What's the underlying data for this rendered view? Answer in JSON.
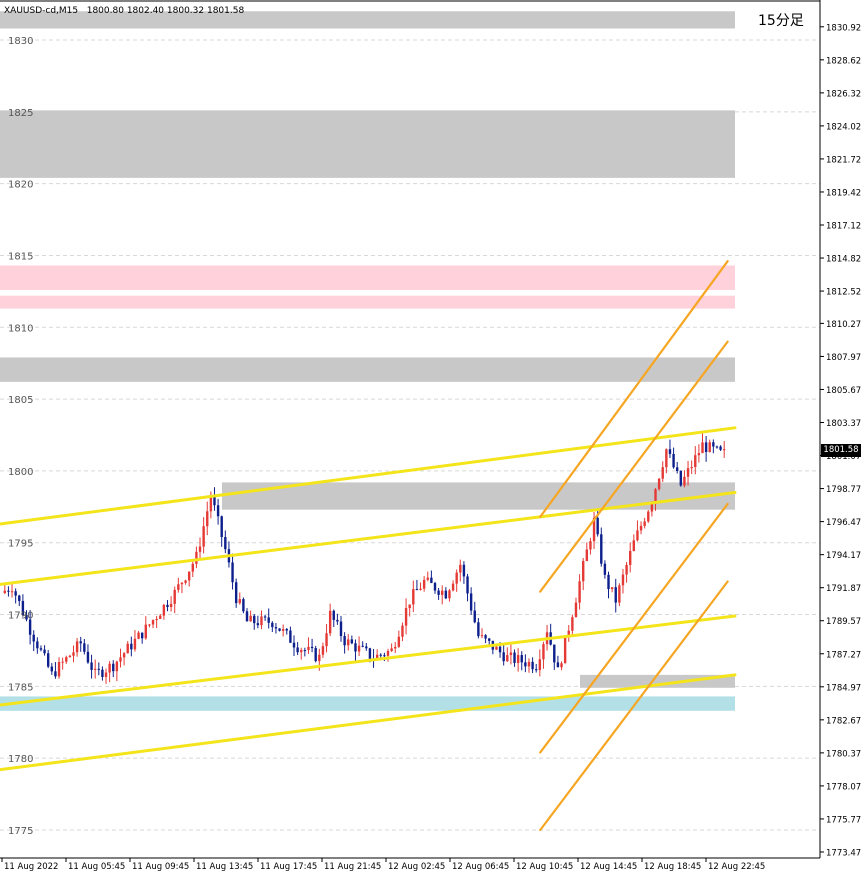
{
  "chart_header": {
    "symbol_info": "XAUUSD-cd,M15",
    "ohlc": "1800.80 1802.40 1800.32 1801.58",
    "timeframe_label": "15分足",
    "current_price": "1801.58"
  },
  "colors": {
    "bull": "#e53935",
    "bear": "#0d1f8c",
    "yellow_line": "#f4e41a",
    "orange_line": "#f6a623",
    "gray_zone": "#c8c8c8",
    "pink_zone": "#ffd1da",
    "cyan_zone": "#b2e0e6",
    "grid": "#d8d8d8"
  },
  "chart_data": {
    "type": "candlestick",
    "symbol": "XAUUSD-cd",
    "timeframe": "M15",
    "ylim": [
      1773.47,
      1832
    ],
    "left_axis_labels": [
      "1830",
      "1825",
      "1820",
      "1815",
      "1810",
      "1805",
      "1800",
      "1795",
      "1790",
      "1785",
      "1780",
      "1775"
    ],
    "right_axis_labels": [
      "1830.92",
      "1828.62",
      "1826.32",
      "1824.02",
      "1821.72",
      "1819.42",
      "1817.12",
      "1814.82",
      "1812.52",
      "1810.27",
      "1807.97",
      "1805.67",
      "1803.37",
      "1801.07",
      "1798.77",
      "1796.47",
      "1794.17",
      "1791.87",
      "1789.57",
      "1787.27",
      "1784.97",
      "1782.67",
      "1780.37",
      "1778.07",
      "1775.77",
      "1773.47"
    ],
    "x_labels": [
      "11 Aug 2022",
      "11 Aug 05:45",
      "11 Aug 09:45",
      "11 Aug 13:45",
      "11 Aug 17:45",
      "11 Aug 21:45",
      "12 Aug 02:45",
      "12 Aug 06:45",
      "12 Aug 10:45",
      "12 Aug 14:45",
      "12 Aug 18:45",
      "12 Aug 22:45"
    ],
    "zones": [
      {
        "kind": "gray",
        "from": 1830.8,
        "to": 1832.0
      },
      {
        "kind": "gray",
        "from": 1820.4,
        "to": 1825.1
      },
      {
        "kind": "pink",
        "from": 1812.6,
        "to": 1814.3
      },
      {
        "kind": "pink",
        "from": 1811.3,
        "to": 1812.2
      },
      {
        "kind": "gray",
        "from": 1806.2,
        "to": 1807.9
      },
      {
        "kind": "gray",
        "from": 1797.3,
        "to": 1799.2
      },
      {
        "kind": "gray",
        "from": 1784.9,
        "to": 1785.8
      },
      {
        "kind": "cyan",
        "from": 1783.3,
        "to": 1784.3
      }
    ],
    "trendlines": [
      {
        "color": "yellow",
        "from": [
          0,
          1796.3
        ],
        "to": [
          1,
          1803.0
        ]
      },
      {
        "color": "yellow",
        "from": [
          0,
          1792.1
        ],
        "to": [
          1,
          1798.5
        ]
      },
      {
        "color": "yellow",
        "from": [
          0,
          1783.7
        ],
        "to": [
          1,
          1789.9
        ]
      },
      {
        "color": "yellow",
        "from": [
          0,
          1779.2
        ],
        "to": [
          1,
          1785.8
        ]
      },
      {
        "color": "orange",
        "from": [
          0.735,
          1796.8
        ],
        "to": [
          0.99,
          1814.6
        ]
      },
      {
        "color": "orange",
        "from": [
          0.735,
          1791.6
        ],
        "to": [
          0.99,
          1809.0
        ]
      },
      {
        "color": "orange",
        "from": [
          0.735,
          1780.4
        ],
        "to": [
          0.99,
          1797.7
        ]
      },
      {
        "color": "orange",
        "from": [
          0.735,
          1775.0
        ],
        "to": [
          0.99,
          1792.3
        ]
      }
    ],
    "anchors": [
      [
        0,
        1791.5
      ],
      [
        3,
        1792.0
      ],
      [
        8,
        1789.0
      ],
      [
        14,
        1785.8
      ],
      [
        22,
        1788.0
      ],
      [
        26,
        1785.8
      ],
      [
        31,
        1786.5
      ],
      [
        40,
        1789.0
      ],
      [
        48,
        1791.5
      ],
      [
        54,
        1794.0
      ],
      [
        58,
        1798.3
      ],
      [
        62,
        1794.5
      ],
      [
        65,
        1791.2
      ],
      [
        68,
        1789.5
      ],
      [
        75,
        1789.5
      ],
      [
        82,
        1787.8
      ],
      [
        88,
        1787.0
      ],
      [
        91,
        1790.0
      ],
      [
        95,
        1788.2
      ],
      [
        103,
        1787.0
      ],
      [
        108,
        1787.5
      ],
      [
        113,
        1791.0
      ],
      [
        117,
        1792.3
      ],
      [
        123,
        1791.5
      ],
      [
        127,
        1793.5
      ],
      [
        132,
        1788.5
      ],
      [
        140,
        1787.0
      ],
      [
        148,
        1786.5
      ],
      [
        151,
        1789.0
      ],
      [
        154,
        1786.0
      ],
      [
        159,
        1791.2
      ],
      [
        164,
        1796.5
      ],
      [
        167,
        1792.5
      ],
      [
        170,
        1791.0
      ],
      [
        175,
        1795.0
      ],
      [
        180,
        1798.0
      ],
      [
        184,
        1801.5
      ],
      [
        188,
        1799.0
      ],
      [
        194,
        1801.8
      ],
      [
        199,
        1801.2
      ]
    ],
    "candle_count": 200
  }
}
